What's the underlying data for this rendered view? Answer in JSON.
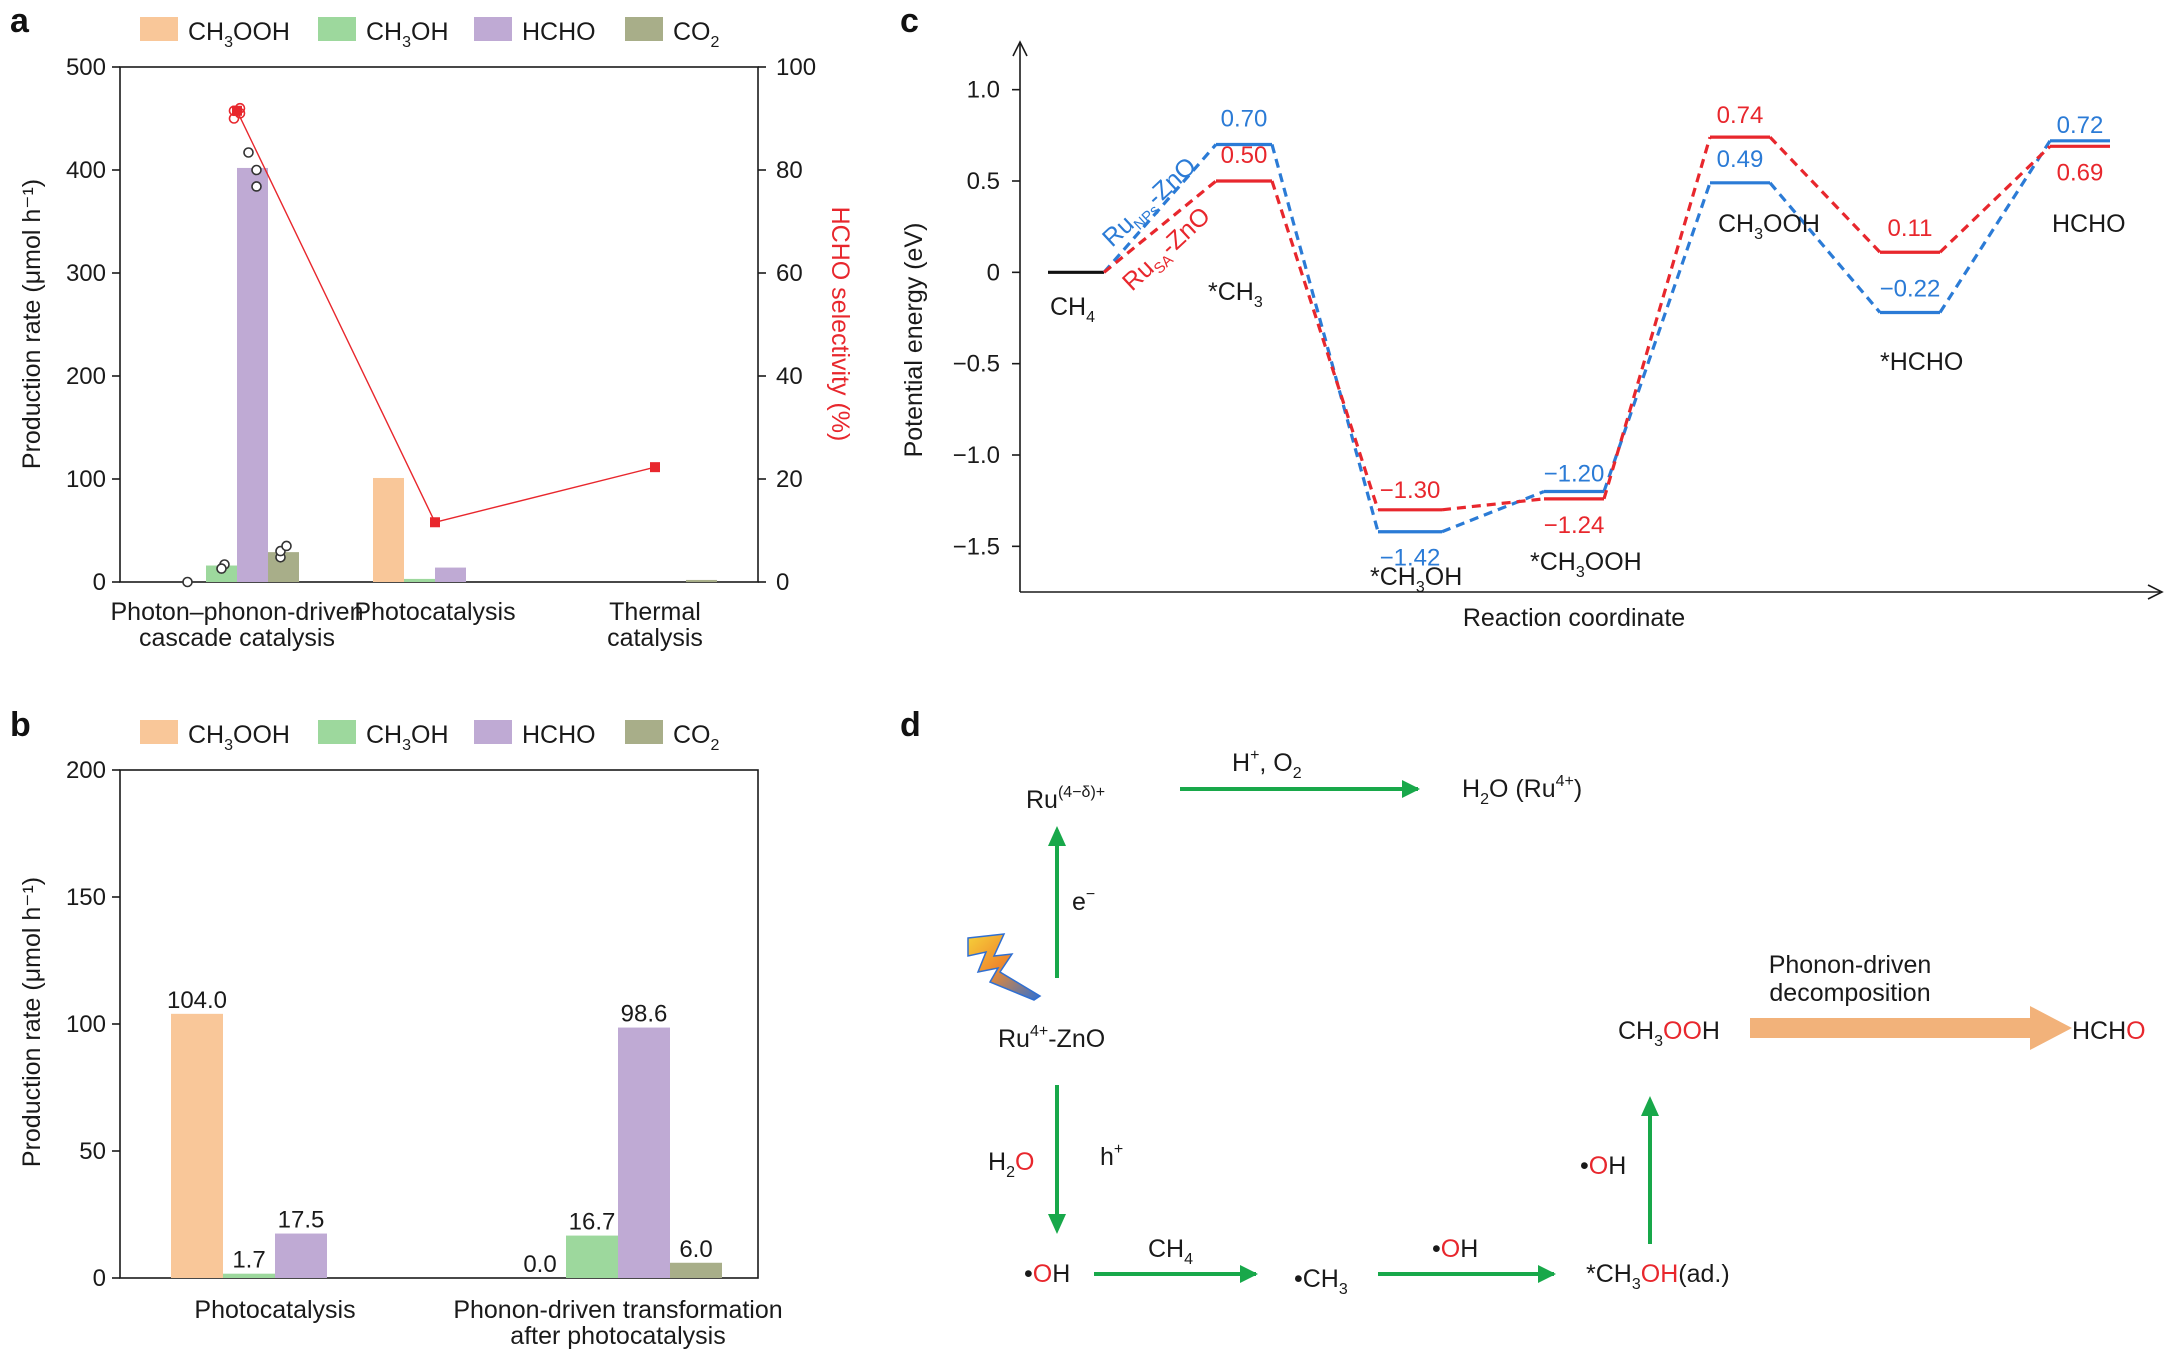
{
  "panel_labels": {
    "a": "a",
    "b": "b",
    "c": "c",
    "d": "d"
  },
  "colors": {
    "ch3ooh": "#f9c799",
    "ch3oh": "#9dd89d",
    "hcho": "#bfaad4",
    "co2": "#a8ae89",
    "red": "#e8272d",
    "blue": "#2b7bd6",
    "black": "#111111",
    "green": "#18a84a",
    "orange": "#f2b27a"
  },
  "chart_data": [
    {
      "panel": "a",
      "type": "bar",
      "legend": [
        "CH3OOH",
        "CH3OH",
        "HCHO",
        "CO2"
      ],
      "legend_placement": "top",
      "categories": [
        "Photon–phonon-driven cascade catalysis",
        "Photocatalysis",
        "Thermal catalysis"
      ],
      "category_lines": [
        [
          "Photon–phonon-driven",
          "cascade catalysis"
        ],
        [
          "Photocatalysis"
        ],
        [
          "Thermal",
          "catalysis"
        ]
      ],
      "series": [
        {
          "name": "CH3OOH",
          "values": [
            0,
            101,
            0
          ]
        },
        {
          "name": "CH3OH",
          "values": [
            16,
            3,
            0
          ]
        },
        {
          "name": "HCHO",
          "values": [
            402,
            14,
            0
          ]
        },
        {
          "name": "CO2",
          "values": [
            29,
            0,
            2
          ]
        }
      ],
      "scatter_points": [
        [
          0,
          0,
          0
        ],
        [
          1,
          0,
          17
        ],
        [
          1,
          0,
          13
        ],
        [
          2,
          0,
          384
        ],
        [
          2,
          0,
          400
        ],
        [
          2,
          0,
          417
        ],
        [
          3,
          0,
          24
        ],
        [
          3,
          0,
          30
        ],
        [
          3,
          0,
          35
        ]
      ],
      "selectivity": {
        "values": [
          91.5,
          11.6,
          22.3
        ],
        "replicates": [
          90,
          91,
          91.5,
          92
        ]
      },
      "ylabel": "Production rate (μmol h⁻¹)",
      "ylabel_right": "HCHO selectivity (%)",
      "ylim": [
        0,
        500
      ],
      "yticks": [
        0,
        100,
        200,
        300,
        400,
        500
      ],
      "ylim_right": [
        0,
        100
      ],
      "yticks_right": [
        0,
        20,
        40,
        60,
        80,
        100
      ]
    },
    {
      "panel": "b",
      "type": "bar",
      "legend": [
        "CH3OOH",
        "CH3OH",
        "HCHO",
        "CO2"
      ],
      "legend_placement": "top",
      "categories": [
        "Photocatalysis",
        "Phonon-driven transformation after photocatalysis"
      ],
      "category_lines": [
        [
          "Photocatalysis"
        ],
        [
          "Phonon-driven transformation",
          "after photocatalysis"
        ]
      ],
      "series": [
        {
          "name": "CH3OOH",
          "values": [
            104.0,
            0.0
          ]
        },
        {
          "name": "CH3OH",
          "values": [
            1.7,
            16.7
          ]
        },
        {
          "name": "HCHO",
          "values": [
            17.5,
            98.6
          ]
        },
        {
          "name": "CO2",
          "values": [
            null,
            6.0
          ]
        }
      ],
      "data_labels": [
        [
          "104.0",
          "1.7",
          "17.5",
          ""
        ],
        [
          "0.0",
          "16.7",
          "98.6",
          "6.0"
        ]
      ],
      "ylabel": "Production rate (μmol h⁻¹)",
      "ylim": [
        0,
        200
      ],
      "yticks": [
        0,
        50,
        100,
        150,
        200
      ]
    },
    {
      "panel": "c",
      "type": "line",
      "xlabel": "Reaction coordinate",
      "ylabel": "Potential energy (eV)",
      "ylim": [
        -1.75,
        1.25
      ],
      "yticks": [
        "-1.5",
        "-1.0",
        "-0.5",
        "0",
        "0.5",
        "1.0"
      ],
      "reference": {
        "label": "CH4",
        "value": 0
      },
      "series": [
        {
          "name": "RuNPs-ZnO",
          "values": [
            0,
            0.7,
            -1.42,
            -1.2,
            0.49,
            -0.22,
            0.72
          ],
          "value_labels": [
            "",
            "0.70",
            "−1.42",
            "−1.20",
            "0.49",
            "−0.22",
            "0.72"
          ]
        },
        {
          "name": "RuSA-ZnO",
          "values": [
            0,
            0.5,
            -1.3,
            -1.24,
            0.74,
            0.11,
            0.69
          ],
          "value_labels": [
            "",
            "0.50",
            "−1.30",
            "−1.24",
            "0.74",
            "0.11",
            "0.69"
          ]
        }
      ],
      "species": [
        "CH4",
        "*CH3",
        "*CH3OH",
        "*CH3OOH",
        "CH3OOH",
        "*HCHO",
        "HCHO"
      ]
    }
  ],
  "scheme": {
    "ru_reduced": "Ru(4−δ)+",
    "h_o2": "H+, O2",
    "h2o_ru4": "H2O    (Ru4+)",
    "electron": "e−",
    "ru_zno": "Ru4+-ZnO",
    "h2o": "H2O",
    "hole": "h+",
    "oh": "•OH",
    "ch4": "CH4",
    "ch3": "•CH3",
    "oh2": "•OH",
    "ch3oh_ad": "*CH3OH(ad.)",
    "oh3": "•OH",
    "ch3ooh": "CH3OOH",
    "phonon_line1": "Phonon-driven",
    "phonon_line2": "decomposition",
    "hcho": "HCHO"
  }
}
